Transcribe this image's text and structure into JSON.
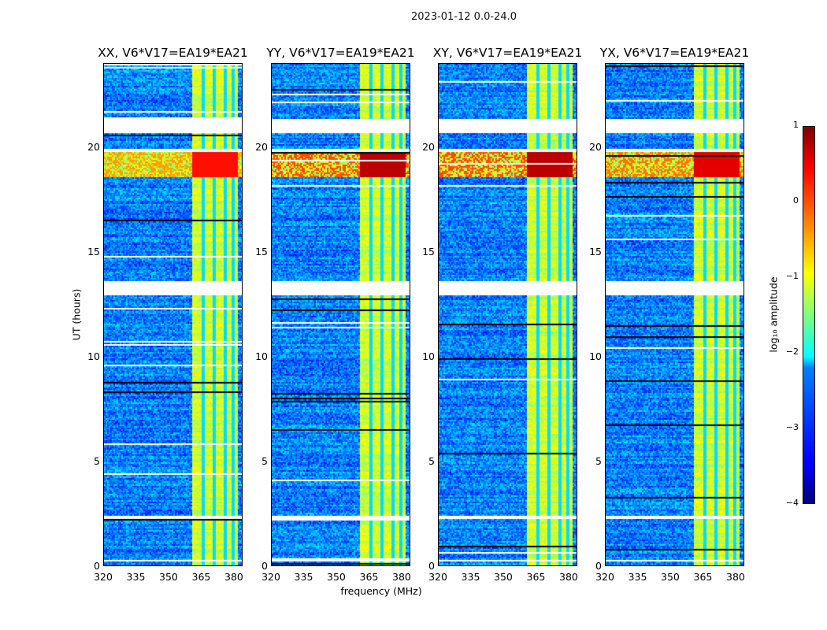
{
  "figure_title": "2023-01-12 0.0-24.0",
  "chart_data": {
    "type": "heatmap",
    "title": "2023-01-12 0.0-24.0",
    "xlabel": "frequency (MHz)",
    "ylabel": "UT (hours)",
    "xlim": [
      320,
      384
    ],
    "ylim": [
      0,
      24
    ],
    "xticks": [
      "320",
      "335",
      "350",
      "365",
      "380"
    ],
    "xtick_values": [
      320,
      335,
      350,
      365,
      380
    ],
    "yticks": [
      "0",
      "5",
      "10",
      "15",
      "20"
    ],
    "ytick_values": [
      0,
      5,
      10,
      15,
      20
    ],
    "panels": [
      {
        "title": "XX, V6*V17=EA19*EA21",
        "rfi_level": -0.1
      },
      {
        "title": "YY, V6*V17=EA19*EA21",
        "rfi_level": 0.3
      },
      {
        "title": "XY, V6*V17=EA19*EA21",
        "rfi_level": 0.3
      },
      {
        "title": "YX, V6*V17=EA19*EA21",
        "rfi_level": 0.1
      }
    ],
    "band_mhz": [
      360,
      381
    ],
    "band_separators_mhz": [
      365.5,
      370.5,
      375.5,
      379
    ],
    "flagged_hours": [
      [
        20.7,
        21.4
      ],
      [
        19.8,
        20.0
      ],
      [
        13.0,
        13.7
      ],
      [
        2.3,
        2.5
      ],
      [
        0.3,
        0.4
      ]
    ],
    "rfi_hours": [
      18.6,
      19.8
    ],
    "colorbar": {
      "label": "log₁₀ amplitude",
      "clim": [
        -4,
        1
      ],
      "ticks": [
        "1",
        "0",
        "−1",
        "−2",
        "−3",
        "−4"
      ],
      "tick_values": [
        1,
        0,
        -1,
        -2,
        -3,
        -4
      ],
      "colormap": "jet"
    }
  }
}
